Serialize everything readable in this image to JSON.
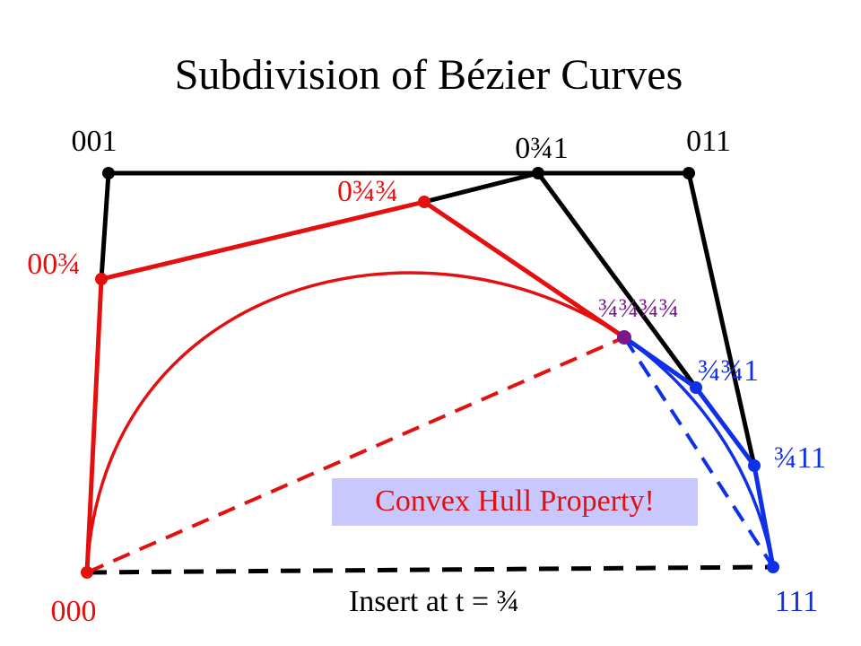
{
  "title": "Subdivision of Bézier Curves",
  "points": {
    "p001": "001",
    "p0341": "0¾1",
    "p011": "011",
    "p03434": "0¾¾",
    "p0034": "00¾",
    "p34343434": "¾¾¾¾",
    "p34341": "¾¾1",
    "p3411": "¾11",
    "p000": "000",
    "p111": "111"
  },
  "caption": "Insert at t = ¾",
  "callout": "Convex Hull Property!"
}
